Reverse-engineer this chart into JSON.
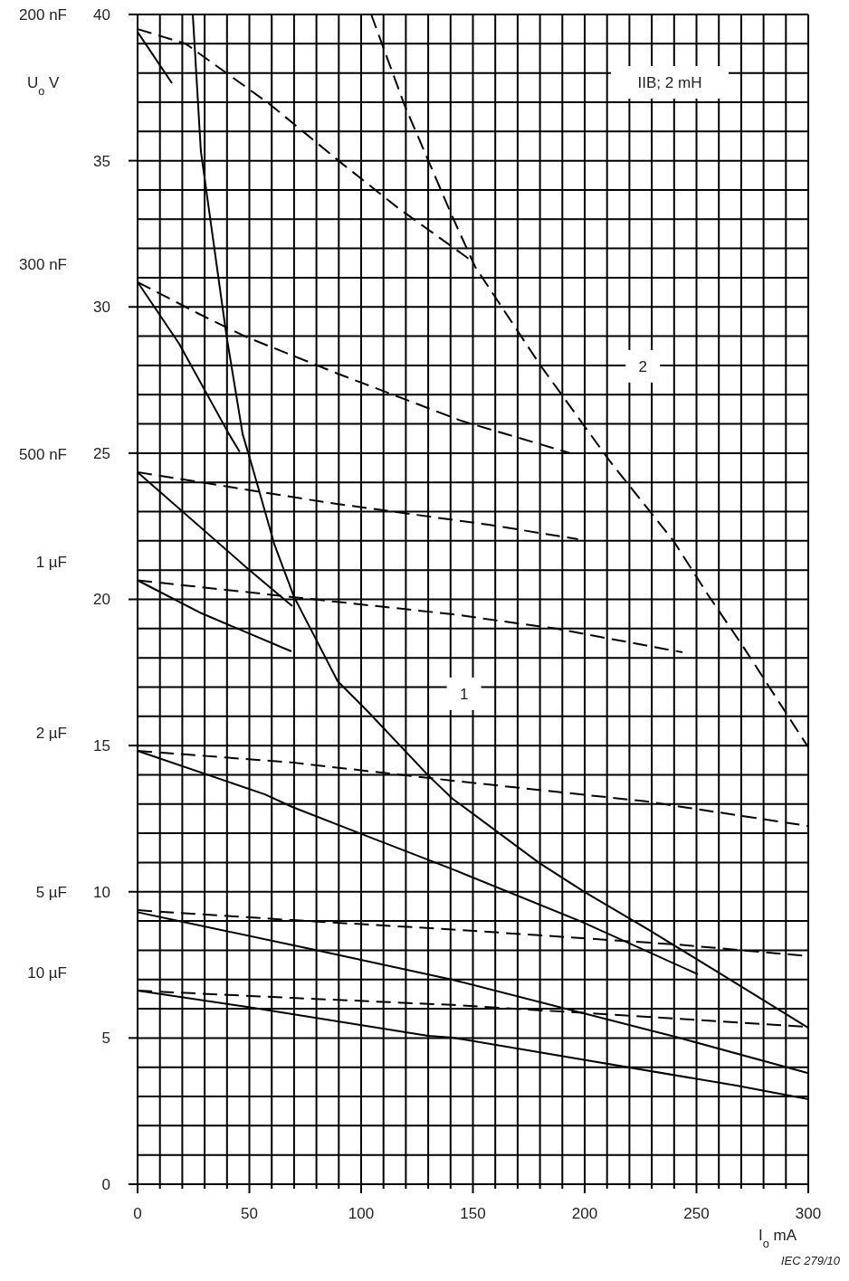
{
  "chart_data": {
    "type": "line",
    "xlabel": "I$_{o}$ mA",
    "ylabel": "U$_{o}$ V",
    "xlim": [
      0,
      300
    ],
    "ylim": [
      0,
      40
    ],
    "xticks": [
      0,
      {
        "value": 10,
        "label": null
      },
      {
        "value": 20,
        "label": null
      },
      {
        "value": 30,
        "label": null
      },
      {
        "value": 40,
        "label": null
      },
      50,
      {
        "value": 60,
        "label": null
      },
      {
        "value": 70,
        "label": null
      },
      {
        "value": 80,
        "label": null
      },
      {
        "value": 90,
        "label": null
      },
      100,
      {
        "value": 110,
        "label": null
      },
      {
        "value": 120,
        "label": null
      },
      {
        "value": 130,
        "label": null
      },
      {
        "value": 140,
        "label": null
      },
      150,
      {
        "value": 160,
        "label": null
      },
      {
        "value": 170,
        "label": null
      },
      {
        "value": 180,
        "label": null
      },
      {
        "value": 190,
        "label": null
      },
      200,
      {
        "value": 210,
        "label": null
      },
      {
        "value": 220,
        "label": null
      },
      {
        "value": 230,
        "label": null
      },
      {
        "value": 240,
        "label": null
      },
      250,
      {
        "value": 260,
        "label": null
      },
      {
        "value": 270,
        "label": null
      },
      {
        "value": 280,
        "label": null
      },
      {
        "value": 290,
        "label": null
      },
      300
    ],
    "yticks": [
      0,
      {
        "value": 1,
        "label": null
      },
      {
        "value": 2,
        "label": null
      },
      {
        "value": 3,
        "label": null
      },
      {
        "value": 4,
        "label": null
      },
      5,
      {
        "value": 6,
        "label": null
      },
      {
        "value": 7,
        "label": null
      },
      {
        "value": 8,
        "label": null
      },
      {
        "value": 9,
        "label": null
      },
      10,
      {
        "value": 11,
        "label": null
      },
      {
        "value": 12,
        "label": null
      },
      {
        "value": 13,
        "label": null
      },
      {
        "value": 14,
        "label": null
      },
      15,
      {
        "value": 16,
        "label": null
      },
      {
        "value": 17,
        "label": null
      },
      {
        "value": 18,
        "label": null
      },
      {
        "value": 19,
        "label": null
      },
      20,
      {
        "value": 21,
        "label": null
      },
      {
        "value": 22,
        "label": null
      },
      {
        "value": 23,
        "label": null
      },
      {
        "value": 24,
        "label": null
      },
      25,
      {
        "value": 26,
        "label": null
      },
      {
        "value": 27,
        "label": null
      },
      {
        "value": 28,
        "label": null
      },
      {
        "value": 29,
        "label": null
      },
      30,
      {
        "value": 31,
        "label": null
      },
      {
        "value": 32,
        "label": null
      },
      {
        "value": 33,
        "label": null
      },
      {
        "value": 34,
        "label": null
      },
      35,
      {
        "value": 36,
        "label": null
      },
      {
        "value": 37,
        "label": null
      },
      {
        "value": 38,
        "label": null
      },
      {
        "value": 39,
        "label": null
      },
      40
    ],
    "grid": true,
    "marker": "none",
    "series": [
      {
        "color": "#000000",
        "line_style": "dashed",
        "x": [
          0,
          21.5,
          59,
          91,
          116.6,
          149
        ],
        "values": [
          39.5,
          39.0,
          36.94,
          34.93,
          33.38,
          31.6
        ]
      },
      {
        "color": "#000000",
        "line_style": "solid",
        "x": [
          0,
          15.4
        ],
        "values": [
          39.4,
          37.65
        ]
      },
      {
        "color": "#000000",
        "line_style": "solid",
        "x": [
          24.7,
          28.3,
          39.7,
          47.0,
          51.8,
          61.1,
          70.0,
          89.5,
          103.2,
          130.0,
          140.9,
          179.8,
          200,
          227.5,
          265.2,
          300
        ],
        "values": [
          40,
          35.33,
          29.05,
          25.65,
          24.4,
          21.9,
          20.08,
          17.2,
          16.15,
          13.98,
          13.18,
          10.98,
          9.99,
          8.75,
          6.99,
          5.35
        ]
      },
      {
        "color": "#000000",
        "line_style": "dashed",
        "x": [
          104.5,
          119.4,
          140.9,
          151,
          180.2,
          211,
          239.7,
          255,
          270.9,
          300
        ],
        "values": [
          40,
          36.9,
          33.07,
          31.37,
          28.0,
          24.75,
          22.0,
          20.17,
          18.38,
          14.94
        ]
      },
      {
        "color": "#000000",
        "line_style": "solid",
        "x": [
          0,
          18.6,
          40.9,
          45.7
        ],
        "values": [
          30.85,
          28.74,
          25.65,
          25.04
        ]
      },
      {
        "color": "#000000",
        "line_style": "dashed",
        "x": [
          0,
          27.5,
          49,
          89.5,
          145,
          193.5
        ],
        "values": [
          30.85,
          29.76,
          28.96,
          27.72,
          26.1,
          25.0
        ]
      },
      {
        "color": "#000000",
        "line_style": "dashed",
        "x": [
          0,
          83,
          157,
          197
        ],
        "values": [
          24.35,
          23.33,
          22.55,
          22.06
        ]
      },
      {
        "color": "#000000",
        "line_style": "solid",
        "x": [
          0,
          49,
          69.2
        ],
        "values": [
          24.35,
          21.07,
          19.77
        ]
      },
      {
        "color": "#000000",
        "line_style": "dashed",
        "x": [
          0,
          69.2,
          140.9,
          187,
          243.7
        ],
        "values": [
          20.65,
          20.08,
          19.49,
          19.0,
          18.19
        ]
      },
      {
        "color": "#000000",
        "line_style": "solid",
        "x": [
          0,
          28.7,
          68.8
        ],
        "values": [
          20.65,
          19.52,
          18.22
        ]
      },
      {
        "color": "#000000",
        "line_style": "dashed",
        "x": [
          0,
          69.2,
          140.9,
          227.5,
          300
        ],
        "values": [
          14.82,
          14.42,
          13.8,
          13.09,
          12.25
        ]
      },
      {
        "color": "#000000",
        "line_style": "solid",
        "x": [
          0,
          57,
          69.2,
          100.4,
          140.9,
          198.8,
          250.6
        ],
        "values": [
          14.82,
          13.33,
          12.9,
          11.97,
          10.77,
          8.97,
          7.18
        ]
      },
      {
        "color": "#000000",
        "line_style": "dashed",
        "x": [
          0,
          69.2,
          141,
          240.5,
          300
        ],
        "values": [
          9.37,
          9.03,
          8.71,
          8.2,
          7.8
        ]
      },
      {
        "color": "#000000",
        "line_style": "solid",
        "x": [
          0,
          79.4,
          140.9,
          242,
          300
        ],
        "values": [
          9.3,
          8.01,
          6.99,
          5.01,
          3.8
        ]
      },
      {
        "color": "#000000",
        "line_style": "dashed",
        "x": [
          0,
          69.2,
          141,
          242,
          300
        ],
        "values": [
          6.62,
          6.37,
          6.13,
          5.66,
          5.38
        ]
      },
      {
        "color": "#000000",
        "line_style": "solid",
        "x": [
          0,
          49,
          130,
          141,
          268,
          300
        ],
        "values": [
          6.62,
          6.06,
          5.07,
          5.01,
          3.37,
          2.91
        ]
      }
    ],
    "annotations": [
      "200 nF",
      "300 nF",
      "500 nF",
      "1 µF",
      "2 µF",
      "5 µF",
      "10 µF",
      {
        "text": "1",
        "x": 146,
        "y": 16.77
      },
      {
        "text": "2",
        "x": 226,
        "y": 27.97
      },
      "IIB; 2 mH",
      "IEC 279/10"
    ]
  }
}
